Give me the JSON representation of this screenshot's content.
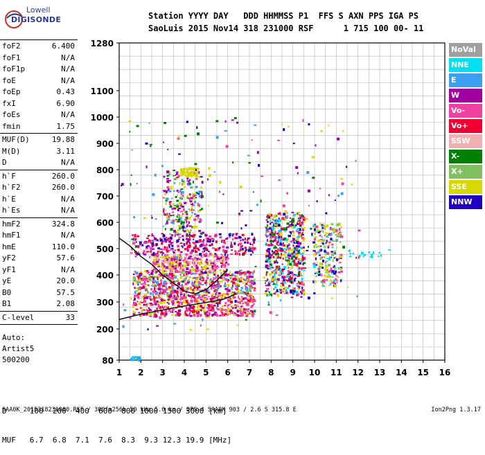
{
  "logo": {
    "line1": "Lowell",
    "line2": "DIGISONDE"
  },
  "header": {
    "line1": "Station YYYY DAY   DDD HHMMSS P1  FFS S AXN PPS IGA PS",
    "line2": "SaoLuis 2015 Nov14 318 231000 RSF      1 715 100 00- 11"
  },
  "params": {
    "group1": [
      {
        "k": "foF2",
        "v": "6.400"
      },
      {
        "k": "foF1",
        "v": "N/A"
      },
      {
        "k": "foF1p",
        "v": "N/A"
      },
      {
        "k": "foE",
        "v": "N/A"
      },
      {
        "k": "foEp",
        "v": "0.43"
      },
      {
        "k": "fxI",
        "v": "6.90"
      },
      {
        "k": "foEs",
        "v": "N/A"
      },
      {
        "k": "fmin",
        "v": "1.75"
      }
    ],
    "group2": [
      {
        "k": "MUF(D)",
        "v": "19.88"
      },
      {
        "k": "M(D)",
        "v": "3.11"
      },
      {
        "k": "D",
        "v": "N/A"
      }
    ],
    "group3": [
      {
        "k": "h`F",
        "v": "260.0"
      },
      {
        "k": "h`F2",
        "v": "260.0"
      },
      {
        "k": "h`E",
        "v": "N/A"
      },
      {
        "k": "h`Es",
        "v": "N/A"
      }
    ],
    "group4": [
      {
        "k": "hmF2",
        "v": "324.8"
      },
      {
        "k": "hmF1",
        "v": "N/A"
      },
      {
        "k": "hmE",
        "v": "110.0"
      },
      {
        "k": "yF2",
        "v": "57.6"
      },
      {
        "k": "yF1",
        "v": "N/A"
      },
      {
        "k": "yE",
        "v": "20.0"
      },
      {
        "k": "B0",
        "v": "57.5"
      },
      {
        "k": "B1",
        "v": "2.08"
      }
    ],
    "group5": [
      {
        "k": "C-level",
        "v": "33"
      }
    ]
  },
  "auto": {
    "line1": "Auto:",
    "line2": "Artist5",
    "line3": "500200"
  },
  "legend": [
    {
      "label": "NoVal",
      "color": "#a0a0a0"
    },
    {
      "label": "NNE",
      "color": "#00e0f0"
    },
    {
      "label": "E",
      "color": "#3ca0f0"
    },
    {
      "label": "W",
      "color": "#a000a0"
    },
    {
      "label": "Vo-",
      "color": "#f040a0"
    },
    {
      "label": "Vo+",
      "color": "#f00030"
    },
    {
      "label": "SSW",
      "color": "#f0b0b0"
    },
    {
      "label": "X-",
      "color": "#008000"
    },
    {
      "label": "X+",
      "color": "#80c060"
    },
    {
      "label": "SSE",
      "color": "#d8d800"
    },
    {
      "label": "NNW",
      "color": "#2000c0"
    }
  ],
  "muf_table": {
    "row1": "D     100  200  400  600  800 1000 1500 3000 [km]",
    "row2": "MUF   6.7  6.8  7.1  7.6  8.3  9.3 12.3 19.9 [MHz]"
  },
  "footer": {
    "left": "SAA0K_2015318231000.RSF / 300fx256h 50 kHz 5.0 km / DPS-4 SAA0K 903 / 2.6 S 315.8 E",
    "right": "Ion2Png 1.3.17"
  },
  "chart_data": {
    "type": "scatter",
    "x_ticks": [
      "1",
      "2",
      "3",
      "4",
      "5",
      "6",
      "7",
      "8",
      "9",
      "10",
      "11",
      "12",
      "13",
      "14",
      "15",
      "16"
    ],
    "y_ticks": [
      "80",
      "200",
      "300",
      "400",
      "500",
      "600",
      "700",
      "800",
      "900",
      "1000",
      "1100",
      "1280"
    ],
    "xlim": [
      1,
      16
    ],
    "ylim": [
      80,
      1280
    ],
    "grid": true,
    "profile_curve": {
      "color": "#000000",
      "x": [
        1.0,
        2.0,
        3.0,
        4.0,
        5.0,
        5.8,
        6.4
      ],
      "y": [
        235,
        255,
        270,
        285,
        298,
        310,
        330
      ]
    },
    "trace_curve": {
      "color": "#000000",
      "x": [
        1.0,
        1.5,
        2.0,
        2.5,
        3.0,
        3.5,
        4.0,
        4.5,
        5.0,
        5.5,
        6.0
      ],
      "y": [
        540,
        510,
        470,
        440,
        400,
        370,
        340,
        330,
        345,
        380,
        420
      ]
    },
    "echo_clusters": [
      {
        "x": [
          1.6,
          7.2
        ],
        "y": [
          250,
          330
        ],
        "n": 520,
        "colors": [
          "#f040a0",
          "#f00030",
          "#d8d800",
          "#f040a0",
          "#a000a0"
        ]
      },
      {
        "x": [
          1.6,
          7.2
        ],
        "y": [
          330,
          420
        ],
        "n": 600,
        "colors": [
          "#f040a0",
          "#d8d800",
          "#a000a0",
          "#f00030",
          "#80c060",
          "#3ca0f0"
        ]
      },
      {
        "x": [
          2.5,
          6.0
        ],
        "y": [
          420,
          480
        ],
        "n": 350,
        "colors": [
          "#d8d800",
          "#f040a0",
          "#a000a0",
          "#f0b0b0"
        ]
      },
      {
        "x": [
          1.5,
          7.2
        ],
        "y": [
          480,
          560
        ],
        "n": 320,
        "colors": [
          "#a000a0",
          "#2000c0",
          "#f040a0",
          "#f00030"
        ]
      },
      {
        "x": [
          3.0,
          4.8
        ],
        "y": [
          560,
          800
        ],
        "n": 240,
        "colors": [
          "#a000a0",
          "#f040a0",
          "#d8d800",
          "#3ca0f0",
          "#008000"
        ]
      },
      {
        "x": [
          3.8,
          4.6
        ],
        "y": [
          780,
          810
        ],
        "n": 60,
        "colors": [
          "#d8d800"
        ]
      },
      {
        "x": [
          7.7,
          9.5
        ],
        "y": [
          330,
          640
        ],
        "n": 600,
        "colors": [
          "#f040a0",
          "#a000a0",
          "#f00030",
          "#d8d800",
          "#008000",
          "#2000c0",
          "#00e0f0"
        ]
      },
      {
        "x": [
          9.8,
          11.2
        ],
        "y": [
          360,
          600
        ],
        "n": 240,
        "colors": [
          "#d8d800",
          "#80c060",
          "#f040a0",
          "#00e0f0",
          "#2000c0"
        ]
      },
      {
        "x": [
          11.5,
          13.4
        ],
        "y": [
          470,
          500
        ],
        "n": 18,
        "colors": [
          "#00e0f0"
        ]
      },
      {
        "x": [
          1.5,
          2.0
        ],
        "y": [
          84,
          96
        ],
        "n": 24,
        "colors": [
          "#00e0f0",
          "#3ca0f0"
        ]
      },
      {
        "x": [
          1.0,
          12.0
        ],
        "y": [
          200,
          1000
        ],
        "n": 220,
        "colors": [
          "#a000a0",
          "#f040a0",
          "#d8d800",
          "#3ca0f0",
          "#008000",
          "#2000c0"
        ]
      }
    ]
  }
}
